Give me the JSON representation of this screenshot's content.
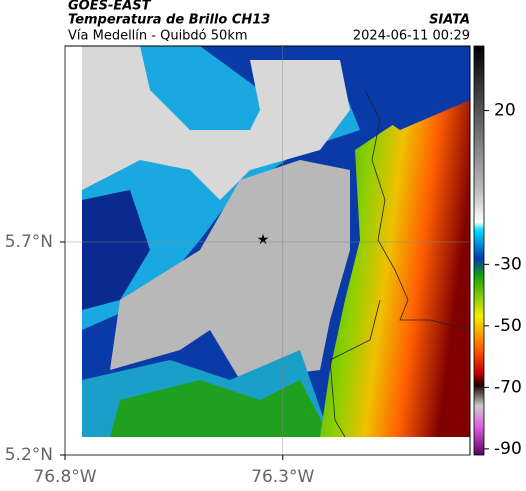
{
  "header": {
    "product": "GOES-EAST",
    "title": "Temperatura de Brillo CH13",
    "location": "Vía Medellín - Quibdó 50km",
    "source": "SIATA",
    "datetime": "2024-06-11 00:29"
  },
  "map": {
    "xlim": [
      -76.8,
      -75.87
    ],
    "ylim": [
      5.2,
      6.16
    ],
    "xticks": [
      {
        "value": -76.8,
        "label": "76.8°W"
      },
      {
        "value": -76.3,
        "label": "76.3°W"
      }
    ],
    "yticks": [
      {
        "value": 5.7,
        "label": "5.7°N"
      },
      {
        "value": 5.2,
        "label": "5.2°N"
      }
    ]
  },
  "colorbar": {
    "lim": [
      -92,
      41
    ],
    "ticks": [
      20,
      -30,
      -50,
      -70,
      -90
    ]
  }
}
